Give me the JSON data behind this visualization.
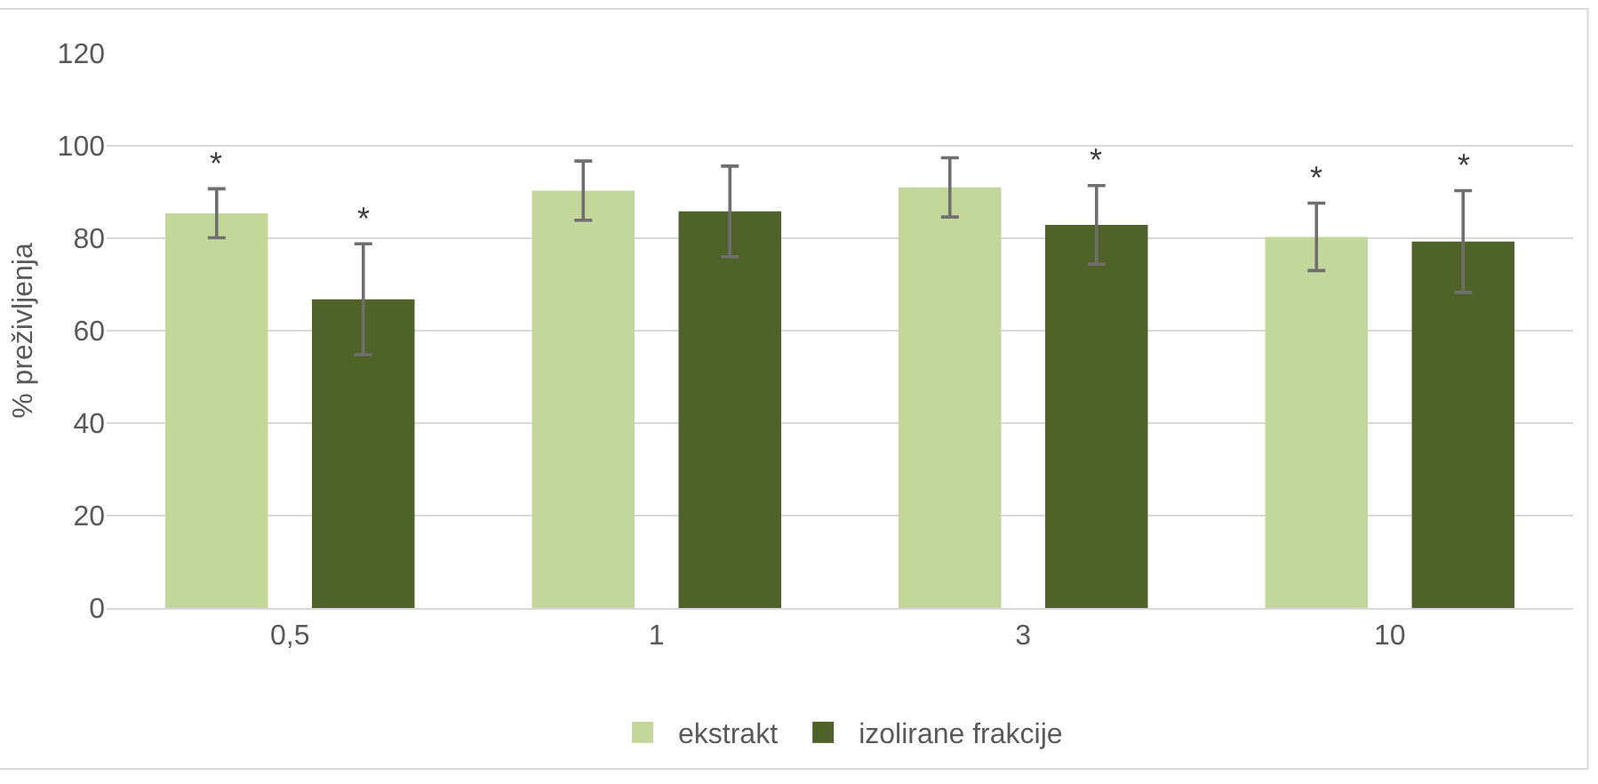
{
  "chart_data": {
    "type": "bar",
    "ylabel": "% preživljenja",
    "categories": [
      "0,5",
      "1",
      "3",
      "10"
    ],
    "series": [
      {
        "name": "ekstrakt",
        "color": "#c4d79b",
        "values": [
          85.4,
          90.3,
          91.0,
          80.3
        ],
        "errors": [
          5.3,
          6.4,
          6.4,
          7.3
        ],
        "value_labels": [
          "*",
          null,
          null,
          "*"
        ]
      },
      {
        "name": "izolirane frakcije",
        "color": "#4f6228",
        "values": [
          66.8,
          85.8,
          82.9,
          79.3
        ],
        "errors": [
          12,
          9.8,
          8.5,
          11
        ],
        "value_labels": [
          "*",
          null,
          "*",
          "*"
        ]
      }
    ],
    "ylim": [
      0,
      120
    ],
    "yticks": [
      0,
      20,
      40,
      60,
      80,
      100,
      120
    ],
    "grid": "y",
    "legend": "bottom"
  }
}
